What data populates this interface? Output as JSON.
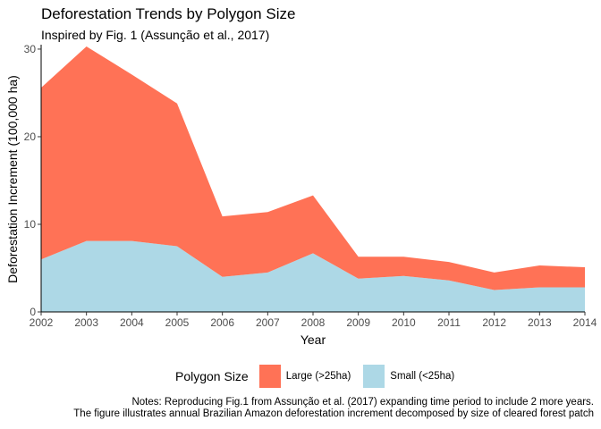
{
  "chart_data": {
    "type": "area",
    "stacked": true,
    "title": "Deforestation Trends by Polygon Size",
    "subtitle": "Inspired by Fig. 1 (Assunção et al., 2017)",
    "xlabel": "Year",
    "ylabel": "Deforestation Increment (100,000 ha)",
    "x": [
      2002,
      2003,
      2004,
      2005,
      2006,
      2007,
      2008,
      2009,
      2010,
      2011,
      2012,
      2013,
      2014
    ],
    "xlim": [
      2002,
      2014
    ],
    "ylim": [
      0,
      30.3
    ],
    "yticks": [
      0,
      10,
      20,
      30
    ],
    "series": [
      {
        "name": "Small (<25ha)",
        "color": "#add8e6",
        "values": [
          6.0,
          8.1,
          8.1,
          7.5,
          4.0,
          4.5,
          6.7,
          3.8,
          4.1,
          3.6,
          2.5,
          2.8,
          2.8
        ]
      },
      {
        "name": "Large (>25ha)",
        "color": "#ff7256",
        "values": [
          19.6,
          22.2,
          19.0,
          16.3,
          6.9,
          6.9,
          6.6,
          2.5,
          2.2,
          2.1,
          2.0,
          2.5,
          2.3
        ]
      }
    ],
    "legend_title": "Polygon Size",
    "legend": [
      {
        "label": "Large (>25ha)",
        "color": "#ff7256"
      },
      {
        "label": "Small (<25ha)",
        "color": "#add8e6"
      }
    ],
    "legend_position": "bottom",
    "grid": false
  },
  "notes": [
    "Notes: Reproducing Fig.1 from Assunção et al. (2017) expanding time period to include 2 more years.",
    "The figure illustrates annual Brazilian Amazon deforestation increment decomposed by size of cleared forest patch"
  ]
}
